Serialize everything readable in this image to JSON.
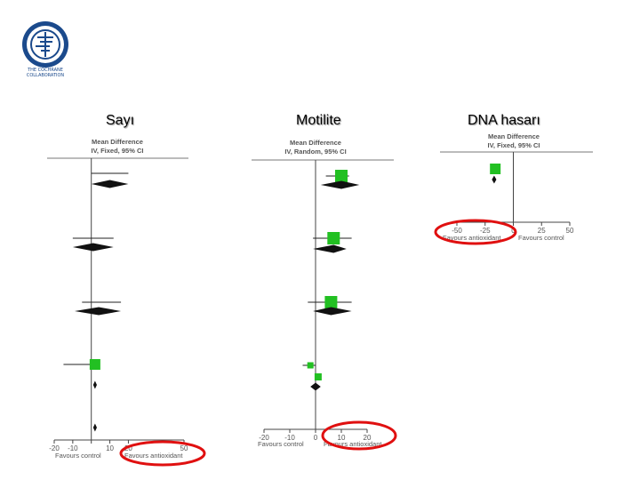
{
  "logo": {
    "line1": "THE COCHRANE",
    "line2": "COLLABORATION"
  },
  "colors": {
    "study": "#22c022",
    "diamond": "#111111",
    "axis": "#444444",
    "circle": "#e01010"
  },
  "chart_data": [
    {
      "type": "forest",
      "title": "Sayı",
      "header": [
        "Mean Difference",
        "IV, Fixed, 95% CI"
      ],
      "xlim": [
        -20,
        50
      ],
      "ticks": [
        -20,
        -10,
        0,
        10,
        20,
        50
      ],
      "tick_labels": [
        "-20",
        "-10",
        "",
        "10",
        "20",
        "50"
      ],
      "favours_left": "Favours control",
      "favours_right": "Favours antioxidant",
      "studies": [
        {
          "point": null,
          "ci": [
            0,
            20
          ],
          "weight": 0
        },
        {
          "point": null,
          "ci": [
            -10,
            12
          ],
          "weight": 0
        },
        {
          "point": null,
          "ci": [
            -5,
            16
          ],
          "weight": 0
        },
        {
          "point": 2,
          "ci": [
            -15,
            2
          ],
          "weight": 12
        }
      ],
      "pooled": [
        {
          "est": 10,
          "lo": 0,
          "hi": 20
        },
        {
          "est": 1,
          "lo": -10,
          "hi": 12
        },
        {
          "est": 4,
          "lo": -9,
          "hi": 16
        },
        {
          "est": 2,
          "lo": 1,
          "hi": 3
        },
        {
          "est": 2,
          "lo": 1,
          "hi": 3
        }
      ]
    },
    {
      "type": "forest",
      "title": "Motilite",
      "header": [
        "Mean Difference",
        "IV, Random, 95% CI"
      ],
      "xlim": [
        -20,
        20
      ],
      "ticks": [
        -20,
        -10,
        0,
        10,
        20
      ],
      "tick_labels": [
        "-20",
        "-10",
        "0",
        "10",
        "20"
      ],
      "favours_left": "Favours control",
      "favours_right": "Favours antioxidant",
      "studies": [
        {
          "point": 10,
          "ci": [
            4,
            13
          ],
          "weight": 14
        },
        {
          "point": 7,
          "ci": [
            -1,
            14
          ],
          "weight": 14
        },
        {
          "point": 6,
          "ci": [
            -3,
            14
          ],
          "weight": 14
        },
        {
          "point": -2,
          "ci": [
            -5,
            0
          ],
          "weight": 7
        },
        {
          "point": 1,
          "ci": [
            0,
            2
          ],
          "weight": 8
        }
      ],
      "pooled": [
        {
          "est": 10,
          "lo": 2,
          "hi": 17
        },
        {
          "est": 7,
          "lo": -1,
          "hi": 12
        },
        {
          "est": 6,
          "lo": -1,
          "hi": 14
        },
        {
          "est": 0,
          "lo": -2,
          "hi": 2
        }
      ]
    },
    {
      "type": "forest",
      "title": "DNA hasarı",
      "header": [
        "Mean Difference",
        "IV, Fixed, 95% CI"
      ],
      "xlim": [
        -50,
        50
      ],
      "ticks": [
        -50,
        -25,
        0,
        25,
        50
      ],
      "tick_labels": [
        "-50",
        "-25",
        "0",
        "25",
        "50"
      ],
      "favours_left": "Favours antioxidant",
      "favours_right": "Favours control",
      "studies": [
        {
          "point": -16,
          "ci": [
            -20,
            -12
          ],
          "weight": 12
        }
      ],
      "pooled": [
        {
          "est": -17,
          "lo": -19,
          "hi": -15
        }
      ]
    }
  ]
}
